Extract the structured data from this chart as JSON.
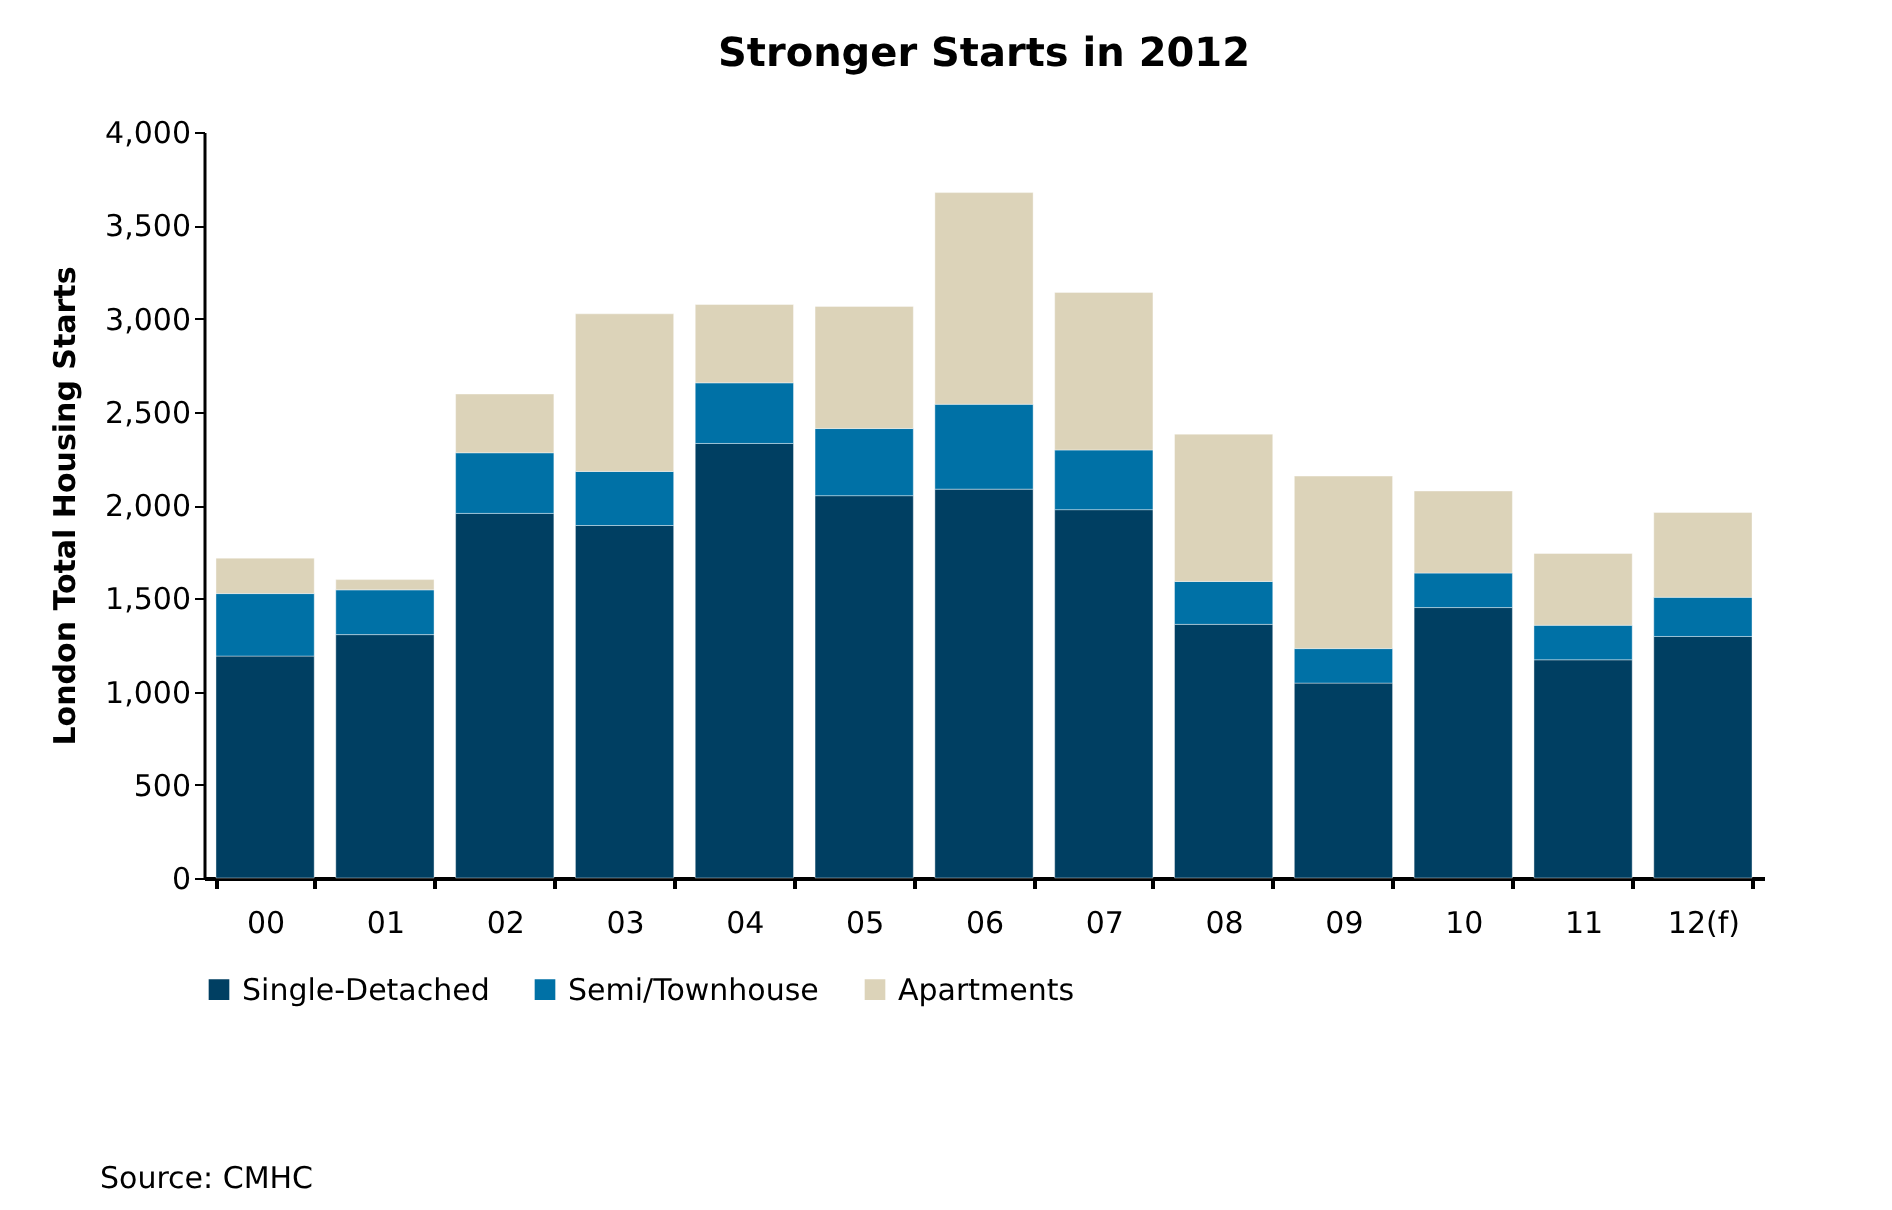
{
  "chart_data": {
    "type": "bar",
    "title": "Stronger Starts in 2012",
    "ylabel": "London Total Housing Starts",
    "categories": [
      "00",
      "01",
      "02",
      "03",
      "04",
      "05",
      "06",
      "07",
      "08",
      "09",
      "10",
      "11",
      "12(f)"
    ],
    "series": [
      {
        "name": "Single-Detached",
        "color": "#003f62",
        "values": [
          1190,
          1305,
          1955,
          1890,
          2330,
          2050,
          2085,
          1975,
          1360,
          1045,
          1450,
          1170,
          1295
        ]
      },
      {
        "name": "Semi/Townhouse",
        "color": "#0071a6",
        "values": [
          335,
          240,
          325,
          290,
          325,
          360,
          455,
          320,
          230,
          185,
          185,
          185,
          210
        ]
      },
      {
        "name": "Apartments",
        "color": "#dcd3b9",
        "values": [
          190,
          55,
          315,
          845,
          420,
          655,
          1135,
          845,
          790,
          925,
          440,
          385,
          455
        ]
      }
    ],
    "stacked": true,
    "ylim": [
      0,
      4000
    ],
    "yticks": [
      0,
      500,
      {
        "value": 1000,
        "label": "1,000"
      },
      {
        "value": 1500,
        "label": "1,500"
      },
      {
        "value": 2000,
        "label": "2,000"
      },
      {
        "value": 2500,
        "label": "2,500"
      },
      {
        "value": 3000,
        "label": "3,000"
      },
      {
        "value": 3500,
        "label": "3,500"
      },
      {
        "value": 4000,
        "label": "4,000"
      }
    ],
    "grid": false,
    "legend": "bottom",
    "annotations": [
      "Source: CMHC"
    ]
  }
}
